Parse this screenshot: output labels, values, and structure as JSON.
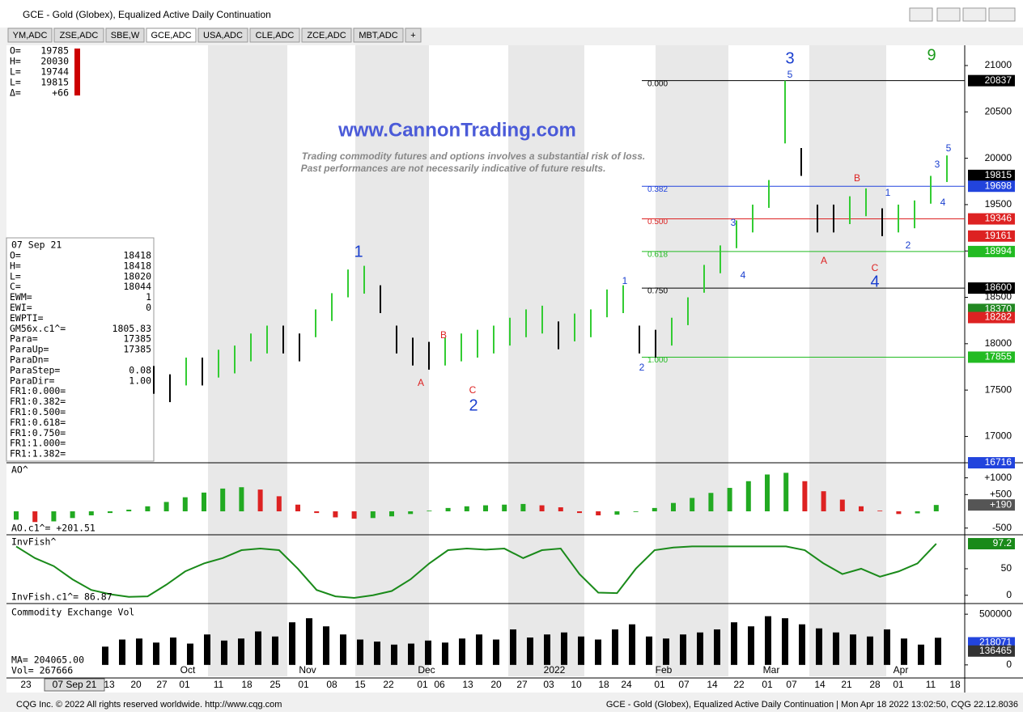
{
  "window": {
    "title": "GCE - Gold (Globex), Equalized Active Daily Continuation"
  },
  "tabs": [
    "YM,ADC",
    "ZSE,ADC",
    "SBE,W",
    "GCE,ADC",
    "USA,ADC",
    "CLE,ADC",
    "ZCE,ADC",
    "MBT,ADC",
    "+"
  ],
  "active_tab": "GCE,ADC",
  "quote_readout": [
    [
      "O=",
      "19785"
    ],
    [
      "H=",
      "20030"
    ],
    [
      "L=",
      "19744"
    ],
    [
      "L=",
      "19815"
    ],
    [
      "Δ=",
      "+66"
    ]
  ],
  "cursor_readout": {
    "date": "07 Sep 21",
    "rows": [
      [
        "O=",
        "18418"
      ],
      [
        "H=",
        "18418"
      ],
      [
        "L=",
        "18020"
      ],
      [
        "C=",
        "18044"
      ],
      [
        "EWM=",
        "1"
      ],
      [
        "EWI=",
        "0"
      ],
      [
        "EWPTI=",
        ""
      ],
      [
        "GM56x.c1^=",
        "1805.83"
      ],
      [
        "Para=",
        "17385"
      ],
      [
        "ParaUp=",
        "17385"
      ],
      [
        "ParaDn=",
        ""
      ],
      [
        "ParaStep=",
        "0.08"
      ],
      [
        "ParaDir=",
        "1.00"
      ],
      [
        "FR1:0.000=",
        ""
      ],
      [
        "FR1:0.382=",
        ""
      ],
      [
        "FR1:0.500=",
        ""
      ],
      [
        "FR1:0.618=",
        ""
      ],
      [
        "FR1:0.750=",
        ""
      ],
      [
        "FR1:1.000=",
        ""
      ],
      [
        "FR1:1.382=",
        ""
      ]
    ]
  },
  "watermark": {
    "url": "www.CannonTrading.com",
    "disclaimer": [
      "Trading commodity futures and options involves a substantial risk of loss.",
      "Past performances are not necessarily indicative of future results."
    ]
  },
  "chart_data": [
    {
      "type": "ohlc",
      "ylim": [
        16716,
        21218
      ],
      "yticks": [
        21000,
        20500,
        20000,
        19500,
        19000,
        18500,
        18000,
        17500,
        17000
      ],
      "highs": [
        17760,
        17670,
        17850,
        17850,
        17935,
        17980,
        18110,
        18195,
        18195,
        18110,
        18370,
        18545,
        18800,
        18840,
        18630,
        18195,
        18065,
        18020,
        18065,
        18110,
        18150,
        18195,
        18280,
        18370,
        18410,
        18240,
        18325,
        18370,
        18585,
        18630,
        18195,
        18150,
        18280,
        18500,
        18850,
        19060,
        19330,
        19500,
        19765,
        20837,
        20110,
        19500,
        19500,
        19590,
        19675,
        19460,
        19500,
        19545,
        19810,
        20030
      ],
      "lows": [
        17460,
        17370,
        17550,
        17550,
        17635,
        17680,
        17810,
        17895,
        17895,
        17810,
        18070,
        18245,
        18500,
        18540,
        18330,
        17895,
        17765,
        17720,
        17765,
        17810,
        17850,
        17895,
        17980,
        18070,
        18110,
        17940,
        18025,
        18070,
        18285,
        18330,
        17895,
        17850,
        17980,
        18200,
        18550,
        18760,
        19030,
        19200,
        19465,
        20160,
        19810,
        19200,
        19200,
        19290,
        19375,
        19160,
        19200,
        19245,
        19510,
        19744
      ],
      "up_color": "#33cc33",
      "down_color": "#000000",
      "levels": [
        {
          "value": 20837,
          "color": "#000000",
          "fib": "0.000"
        },
        {
          "value": 19815,
          "color": "#000000"
        },
        {
          "value": 19698,
          "color": "#2244dd",
          "fib": "0.382"
        },
        {
          "value": 19346,
          "color": "#dd2222",
          "fib": "0.500"
        },
        {
          "value": 19161,
          "color": "#dd2222"
        },
        {
          "value": 18994,
          "color": "#22bb22",
          "fib": "0.618"
        },
        {
          "value": 18600,
          "color": "#000000",
          "fib": "0.750"
        },
        {
          "value": 18370,
          "color": "#228822"
        },
        {
          "value": 18282,
          "color": "#dd2222"
        },
        {
          "value": 17855,
          "color": "#22bb22",
          "fib": "1.000"
        },
        {
          "value": 16716,
          "color": "#2244dd"
        }
      ],
      "wave_labels": [
        {
          "text": "1",
          "color": "#1a3fcf"
        },
        {
          "text": "2",
          "color": "#1a3fcf"
        },
        {
          "text": "3",
          "color": "#1a3fcf"
        },
        {
          "text": "4",
          "color": "#1a3fcf"
        },
        {
          "text": "9",
          "color": "#1a9a1a"
        },
        {
          "text": "5",
          "color": "#1a3fcf"
        },
        {
          "text": "A",
          "color": "#dd2222"
        },
        {
          "text": "B",
          "color": "#dd2222"
        },
        {
          "text": "C",
          "color": "#dd2222"
        },
        {
          "text": "1",
          "color": "#1a3fcf"
        },
        {
          "text": "2",
          "color": "#1a3fcf"
        },
        {
          "text": "3",
          "color": "#1a3fcf"
        },
        {
          "text": "4",
          "color": "#1a3fcf"
        },
        {
          "text": "A",
          "color": "#dd2222"
        },
        {
          "text": "B",
          "color": "#dd2222"
        },
        {
          "text": "C",
          "color": "#dd2222"
        },
        {
          "text": "1",
          "color": "#1a3fcf"
        },
        {
          "text": "2",
          "color": "#1a3fcf"
        },
        {
          "text": "3",
          "color": "#1a3fcf"
        },
        {
          "text": "4",
          "color": "#1a3fcf"
        },
        {
          "text": "5",
          "color": "#1a3fcf"
        }
      ]
    },
    {
      "type": "bar",
      "title": "AO^",
      "readout": "AO.c1^= +201.51",
      "ylim": [
        -700,
        1450
      ],
      "yticks": [
        {
          "value": 1000,
          "label": "+1000"
        },
        {
          "value": 500,
          "label": "+500"
        },
        -500
      ],
      "last": {
        "value": 190,
        "label": "+190"
      },
      "up_color": "#22aa22",
      "down_color": "#dd2222",
      "values": [
        -250,
        -320,
        -300,
        -200,
        -120,
        -50,
        50,
        150,
        280,
        420,
        560,
        680,
        720,
        650,
        450,
        200,
        -50,
        -180,
        -220,
        -200,
        -150,
        -80,
        20,
        100,
        150,
        180,
        200,
        220,
        180,
        120,
        -50,
        -120,
        -100,
        -20,
        100,
        250,
        400,
        550,
        700,
        900,
        1100,
        1150,
        900,
        600,
        350,
        150,
        20,
        -80,
        -60,
        190
      ]
    },
    {
      "type": "line",
      "title": "InvFish^",
      "readout": "InvFish.c1^=   86.87",
      "ylim": [
        -15.6,
        114
      ],
      "yticks": [
        50,
        0
      ],
      "last": 97.2,
      "color": "#1a8a1a",
      "values": [
        92,
        70,
        55,
        30,
        10,
        2,
        -3,
        -2,
        20,
        45,
        60,
        70,
        85,
        88,
        85,
        50,
        10,
        -2,
        -5,
        0,
        8,
        30,
        60,
        85,
        88,
        86,
        88,
        70,
        85,
        88,
        40,
        5,
        4,
        50,
        85,
        90,
        92,
        92,
        92,
        92,
        92,
        92,
        85,
        60,
        40,
        50,
        35,
        45,
        60,
        97.2
      ]
    },
    {
      "type": "volume",
      "title": "Commodity Exchange Vol",
      "readouts": [
        "MA= 204065.00",
        "Vol=  267666"
      ],
      "ylim": [
        -129000,
        605000
      ],
      "yticks": [
        500000,
        0
      ],
      "tags": [
        {
          "value": 218071,
          "color": "#2244dd"
        },
        {
          "value": 136465,
          "color": "#333333"
        }
      ],
      "color": "#000000",
      "values": [
        180000,
        250000,
        260000,
        220000,
        270000,
        210000,
        300000,
        240000,
        260000,
        330000,
        280000,
        420000,
        460000,
        380000,
        300000,
        250000,
        230000,
        200000,
        210000,
        240000,
        220000,
        260000,
        300000,
        250000,
        350000,
        270000,
        300000,
        320000,
        280000,
        250000,
        350000,
        400000,
        280000,
        260000,
        300000,
        320000,
        350000,
        420000,
        380000,
        480000,
        460000,
        400000,
        360000,
        320000,
        300000,
        280000,
        350000,
        260000,
        200000,
        267666
      ]
    }
  ],
  "date_axis": {
    "months": [
      "Oct",
      "Nov",
      "Dec",
      "2022",
      "Feb",
      "Mar",
      "Apr"
    ],
    "days": [
      "23",
      "07 Sep 21",
      "13",
      "20",
      "27",
      "01",
      "11",
      "18",
      "25",
      "01",
      "08",
      "15",
      "22",
      "01",
      "06",
      "13",
      "20",
      "27",
      "03",
      "10",
      "18",
      "24",
      "01",
      "07",
      "14",
      "22",
      "01",
      "07",
      "14",
      "21",
      "28",
      "01",
      "11",
      "18"
    ]
  },
  "footer": {
    "left": "CQG Inc. © 2022 All rights reserved worldwide. http://www.cqg.com",
    "right": "GCE - Gold (Globex), Equalized Active Daily Continuation | Mon Apr 18 2022 13:02:50, CQG 22.12.8036"
  }
}
